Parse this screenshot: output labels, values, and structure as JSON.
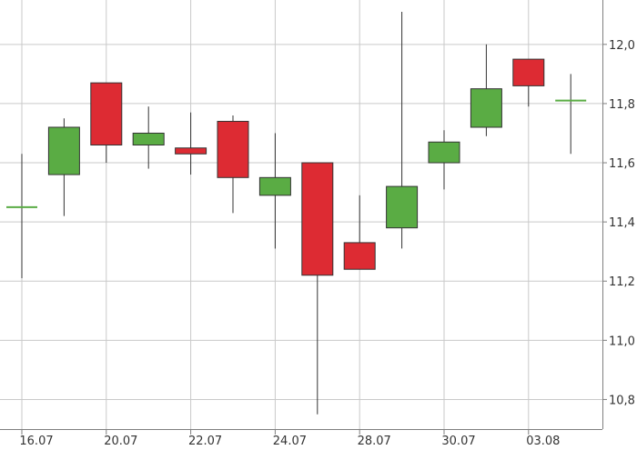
{
  "chart_data": {
    "type": "candlestick",
    "title": "",
    "xlabel": "",
    "ylabel": "",
    "ylim": [
      10.7,
      12.15
    ],
    "y_ticks": [
      "10,8",
      "11,0",
      "11,2",
      "11,4",
      "11,6",
      "11,8",
      "12,0"
    ],
    "x_ticks": [
      {
        "label": "16.07",
        "index": 0
      },
      {
        "label": "20.07",
        "index": 2
      },
      {
        "label": "22.07",
        "index": 4
      },
      {
        "label": "24.07",
        "index": 6
      },
      {
        "label": "28.07",
        "index": 8
      },
      {
        "label": "30.07",
        "index": 10
      },
      {
        "label": "03.08",
        "index": 12
      }
    ],
    "grid": true,
    "y_axis_position": "right",
    "colors": {
      "up": "#5aac44",
      "down": "#dd2b33",
      "wick": "#333333",
      "grid": "#c9c9c9",
      "axis": "#7f7f7f"
    },
    "candles": [
      {
        "open": 11.45,
        "high": 11.63,
        "low": 11.21,
        "close": 11.45
      },
      {
        "open": 11.56,
        "high": 11.75,
        "low": 11.42,
        "close": 11.72
      },
      {
        "open": 11.87,
        "high": 11.87,
        "low": 11.6,
        "close": 11.66
      },
      {
        "open": 11.66,
        "high": 11.79,
        "low": 11.58,
        "close": 11.7
      },
      {
        "open": 11.65,
        "high": 11.77,
        "low": 11.56,
        "close": 11.63
      },
      {
        "open": 11.74,
        "high": 11.76,
        "low": 11.43,
        "close": 11.55
      },
      {
        "open": 11.49,
        "high": 11.7,
        "low": 11.31,
        "close": 11.55
      },
      {
        "open": 11.6,
        "high": 11.6,
        "low": 10.75,
        "close": 11.22
      },
      {
        "open": 11.33,
        "high": 11.49,
        "low": 11.24,
        "close": 11.24
      },
      {
        "open": 11.38,
        "high": 12.11,
        "low": 11.31,
        "close": 11.52
      },
      {
        "open": 11.6,
        "high": 11.71,
        "low": 11.51,
        "close": 11.67
      },
      {
        "open": 11.72,
        "high": 12.0,
        "low": 11.69,
        "close": 11.85
      },
      {
        "open": 11.95,
        "high": 11.95,
        "low": 11.79,
        "close": 11.86
      },
      {
        "open": 11.81,
        "high": 11.9,
        "low": 11.63,
        "close": 11.81
      }
    ]
  }
}
